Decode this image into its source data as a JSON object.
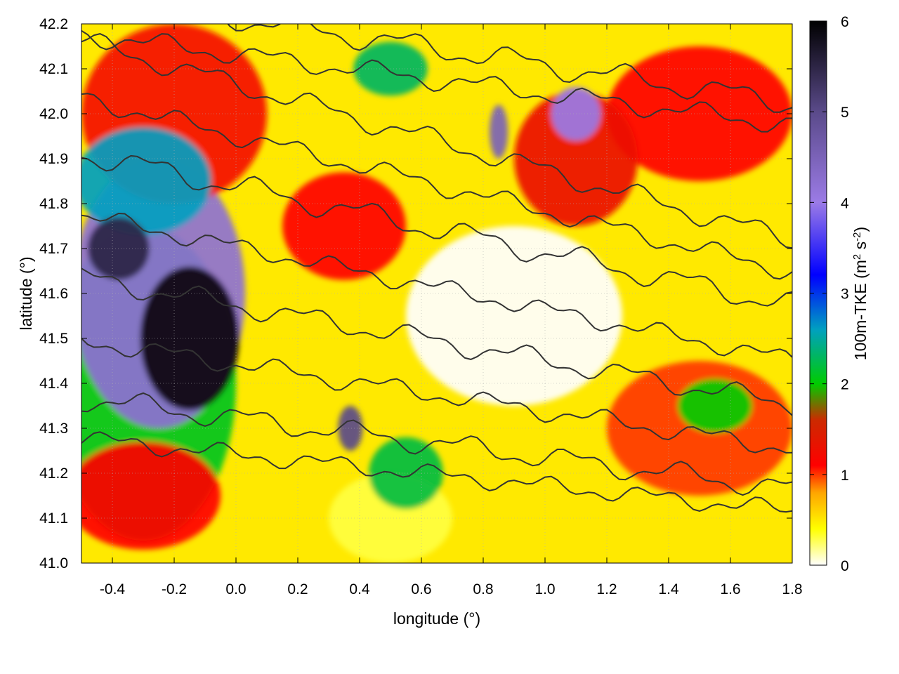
{
  "chart_data": {
    "type": "heatmap",
    "xlabel": "longitude (°)",
    "ylabel": "latitude (°)",
    "xlim": [
      -0.5,
      1.8
    ],
    "ylim": [
      41.0,
      42.2
    ],
    "x_ticks": [
      {
        "value": -0.4,
        "label": "-0.4"
      },
      {
        "value": -0.2,
        "label": "-0.2"
      },
      {
        "value": 0.0,
        "label": "0.0"
      },
      {
        "value": 0.2,
        "label": "0.2"
      },
      {
        "value": 0.4,
        "label": "0.4"
      },
      {
        "value": 0.6,
        "label": "0.6"
      },
      {
        "value": 0.8,
        "label": "0.8"
      },
      {
        "value": 1.0,
        "label": "1.0"
      },
      {
        "value": 1.2,
        "label": "1.2"
      },
      {
        "value": 1.4,
        "label": "1.4"
      },
      {
        "value": 1.6,
        "label": "1.6"
      },
      {
        "value": 1.8,
        "label": "1.8"
      }
    ],
    "y_ticks": [
      {
        "value": 41.0,
        "label": "41.0"
      },
      {
        "value": 41.1,
        "label": "41.1"
      },
      {
        "value": 41.2,
        "label": "41.2"
      },
      {
        "value": 41.3,
        "label": "41.3"
      },
      {
        "value": 41.4,
        "label": "41.4"
      },
      {
        "value": 41.5,
        "label": "41.5"
      },
      {
        "value": 41.6,
        "label": "41.6"
      },
      {
        "value": 41.7,
        "label": "41.7"
      },
      {
        "value": 41.8,
        "label": "41.8"
      },
      {
        "value": 41.9,
        "label": "41.9"
      },
      {
        "value": 42.0,
        "label": "42.0"
      },
      {
        "value": 42.1,
        "label": "42.1"
      },
      {
        "value": 42.2,
        "label": "42.2"
      }
    ],
    "grid": true,
    "colorbar": {
      "label_main": "100m-TKE (m",
      "label_sup1": "2",
      "label_mid": " s",
      "label_sup2": "-2",
      "label_end": ")",
      "range": [
        0,
        6
      ],
      "ticks": [
        {
          "value": 0,
          "label": "0"
        },
        {
          "value": 1,
          "label": "1"
        },
        {
          "value": 2,
          "label": "2"
        },
        {
          "value": 3,
          "label": "3"
        },
        {
          "value": 4,
          "label": "4"
        },
        {
          "value": 5,
          "label": "5"
        },
        {
          "value": 6,
          "label": "6"
        }
      ],
      "color_stops": [
        {
          "value": 0.0,
          "color": "#ffffff"
        },
        {
          "value": 0.4,
          "color": "#ffff00"
        },
        {
          "value": 0.8,
          "color": "#ffa500"
        },
        {
          "value": 1.1,
          "color": "#ff0000"
        },
        {
          "value": 1.6,
          "color": "#cc2a00"
        },
        {
          "value": 2.0,
          "color": "#00cc00"
        },
        {
          "value": 2.6,
          "color": "#00a0c0"
        },
        {
          "value": 3.2,
          "color": "#0000ff"
        },
        {
          "value": 4.0,
          "color": "#9b7be6"
        },
        {
          "value": 5.0,
          "color": "#5a4a8a"
        },
        {
          "value": 6.0,
          "color": "#000000"
        }
      ]
    },
    "field_regions": [
      {
        "lon": -0.15,
        "lat": 41.5,
        "rx": 0.16,
        "ry": 0.16,
        "tke": 5.9
      },
      {
        "lon": -0.38,
        "lat": 41.7,
        "rx": 0.1,
        "ry": 0.07,
        "tke": 5.5
      },
      {
        "lon": -0.25,
        "lat": 41.6,
        "rx": 0.28,
        "ry": 0.3,
        "tke": 4.2
      },
      {
        "lon": -0.3,
        "lat": 41.85,
        "rx": 0.22,
        "ry": 0.12,
        "tke": 2.6
      },
      {
        "lon": -0.3,
        "lat": 41.4,
        "rx": 0.3,
        "ry": 0.35,
        "tke": 2.1
      },
      {
        "lon": -0.2,
        "lat": 42.0,
        "rx": 0.3,
        "ry": 0.2,
        "tke": 1.2
      },
      {
        "lon": 0.35,
        "lat": 41.75,
        "rx": 0.2,
        "ry": 0.12,
        "tke": 1.1
      },
      {
        "lon": -0.3,
        "lat": 41.15,
        "rx": 0.25,
        "ry": 0.12,
        "tke": 1.1
      },
      {
        "lon": 0.85,
        "lat": 41.96,
        "rx": 0.03,
        "ry": 0.06,
        "tke": 4.5
      },
      {
        "lon": 1.1,
        "lat": 42.0,
        "rx": 0.08,
        "ry": 0.06,
        "tke": 4.0
      },
      {
        "lon": 1.1,
        "lat": 41.9,
        "rx": 0.2,
        "ry": 0.15,
        "tke": 1.3
      },
      {
        "lon": 1.5,
        "lat": 42.0,
        "rx": 0.3,
        "ry": 0.15,
        "tke": 1.1
      },
      {
        "lon": 0.37,
        "lat": 41.3,
        "rx": 0.04,
        "ry": 0.05,
        "tke": 5.0
      },
      {
        "lon": 0.55,
        "lat": 41.2,
        "rx": 0.12,
        "ry": 0.08,
        "tke": 2.2
      },
      {
        "lon": 1.55,
        "lat": 41.35,
        "rx": 0.12,
        "ry": 0.06,
        "tke": 2.0
      },
      {
        "lon": 0.5,
        "lat": 42.1,
        "rx": 0.12,
        "ry": 0.06,
        "tke": 2.3
      },
      {
        "lon": 1.5,
        "lat": 41.3,
        "rx": 0.3,
        "ry": 0.15,
        "tke": 1.0
      },
      {
        "lon": 0.9,
        "lat": 41.55,
        "rx": 0.35,
        "ry": 0.2,
        "tke": 0.0
      },
      {
        "lon": 0.5,
        "lat": 41.1,
        "rx": 0.2,
        "ry": 0.1,
        "tke": 0.3
      }
    ]
  }
}
